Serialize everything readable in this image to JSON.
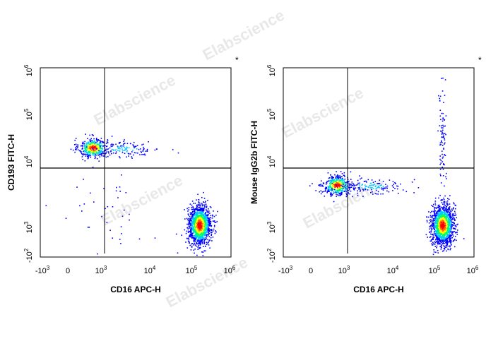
{
  "watermark": "Elabscience",
  "chart_data": [
    {
      "type": "scatter",
      "subtype": "flow-cytometry-density-dot-plot",
      "marker": "*",
      "xlabel": "CD16 APC-H",
      "ylabel": "CD193 FITC-H",
      "x_ticks": [
        {
          "base": "-10",
          "exp": "3"
        },
        {
          "base": "0",
          "exp": ""
        },
        {
          "base": "10",
          "exp": "3"
        },
        {
          "base": "10",
          "exp": "4"
        },
        {
          "base": "10",
          "exp": "5"
        },
        {
          "base": "10",
          "exp": "6"
        }
      ],
      "y_ticks": [
        {
          "base": "-10",
          "exp": "2"
        },
        {
          "base": "10",
          "exp": "3"
        },
        {
          "base": "10",
          "exp": "4"
        },
        {
          "base": "10",
          "exp": "5"
        },
        {
          "base": "10",
          "exp": "6"
        }
      ],
      "gate": {
        "x": 1600,
        "y": 6500
      },
      "populations": [
        {
          "x": 500,
          "y": 20000,
          "count": 420,
          "description": "CD16- CD193+ cluster"
        },
        {
          "x": 3000,
          "y": 19000,
          "count": 140,
          "description": "CD193+ tail"
        },
        {
          "x": 160000,
          "y": 1100,
          "count": 1400,
          "description": "CD16+ CD193- cluster"
        },
        {
          "x": 800,
          "y": 1700,
          "count": 40,
          "description": "scattered low events"
        }
      ]
    },
    {
      "type": "scatter",
      "subtype": "flow-cytometry-density-dot-plot",
      "marker": "*",
      "xlabel": "CD16 APC-H",
      "ylabel": "Mouse IgG2b FITC-H",
      "x_ticks": [
        {
          "base": "-10",
          "exp": "3"
        },
        {
          "base": "0",
          "exp": ""
        },
        {
          "base": "10",
          "exp": "3"
        },
        {
          "base": "10",
          "exp": "4"
        },
        {
          "base": "10",
          "exp": "5"
        },
        {
          "base": "10",
          "exp": "6"
        }
      ],
      "y_ticks": [
        {
          "base": "-10",
          "exp": "2"
        },
        {
          "base": "10",
          "exp": "3"
        },
        {
          "base": "10",
          "exp": "4"
        },
        {
          "base": "10",
          "exp": "5"
        },
        {
          "base": "10",
          "exp": "6"
        }
      ],
      "gate": {
        "x": 1600,
        "y": 6500
      },
      "populations": [
        {
          "x": 550,
          "y": 4500,
          "count": 420,
          "description": "CD16- isotype cluster"
        },
        {
          "x": 3500,
          "y": 4400,
          "count": 160,
          "description": "isotype tail"
        },
        {
          "x": 160000,
          "y": 1100,
          "count": 1400,
          "description": "CD16+ cluster"
        },
        {
          "x": 160000,
          "y": 30000,
          "count": 90,
          "description": "CD16+ vertical streak"
        }
      ]
    }
  ],
  "colors": {
    "density_low": "#0000ff",
    "density_mid_low": "#00c8ff",
    "density_mid": "#00ff64",
    "density_mid_high": "#ffff00",
    "density_high": "#ff6400",
    "density_peak": "#ff0000",
    "gate_line": "#000000"
  }
}
